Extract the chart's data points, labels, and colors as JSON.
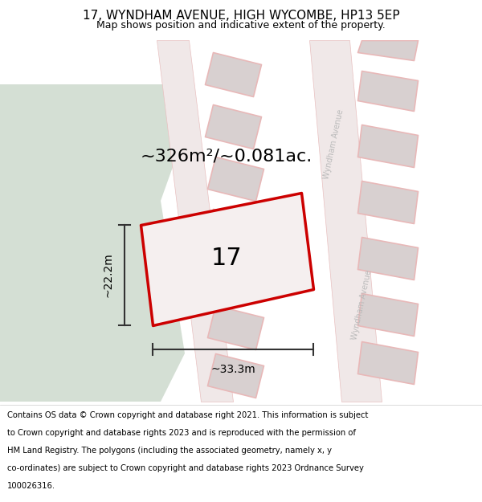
{
  "title": "17, WYNDHAM AVENUE, HIGH WYCOMBE, HP13 5EP",
  "subtitle": "Map shows position and indicative extent of the property.",
  "footer_lines": [
    "Contains OS data © Crown copyright and database right 2021. This information is subject",
    "to Crown copyright and database rights 2023 and is reproduced with the permission of",
    "HM Land Registry. The polygons (including the associated geometry, namely x, y",
    "co-ordinates) are subject to Crown copyright and database rights 2023 Ordnance Survey",
    "100026316."
  ],
  "area_text": "~326m²/~0.081ac.",
  "dim_width": "~33.3m",
  "dim_height": "~22.2m",
  "plot_number": "17",
  "bg_map_color": "#f2eded",
  "green_area_color": "#d4dfd4",
  "road_fill": "#f0e8e8",
  "road_stroke": "#e8c0c0",
  "building_fill": "#d8d0d0",
  "building_stroke": "#e8b8b8",
  "highlight_fill": "#f5efef",
  "highlight_stroke": "#cc0000",
  "title_fontsize": 11,
  "subtitle_fontsize": 9,
  "footer_fontsize": 7.2,
  "area_fontsize": 16,
  "dim_fontsize": 10,
  "plot_num_fontsize": 22,
  "road_label_color": "#bbbbbb"
}
